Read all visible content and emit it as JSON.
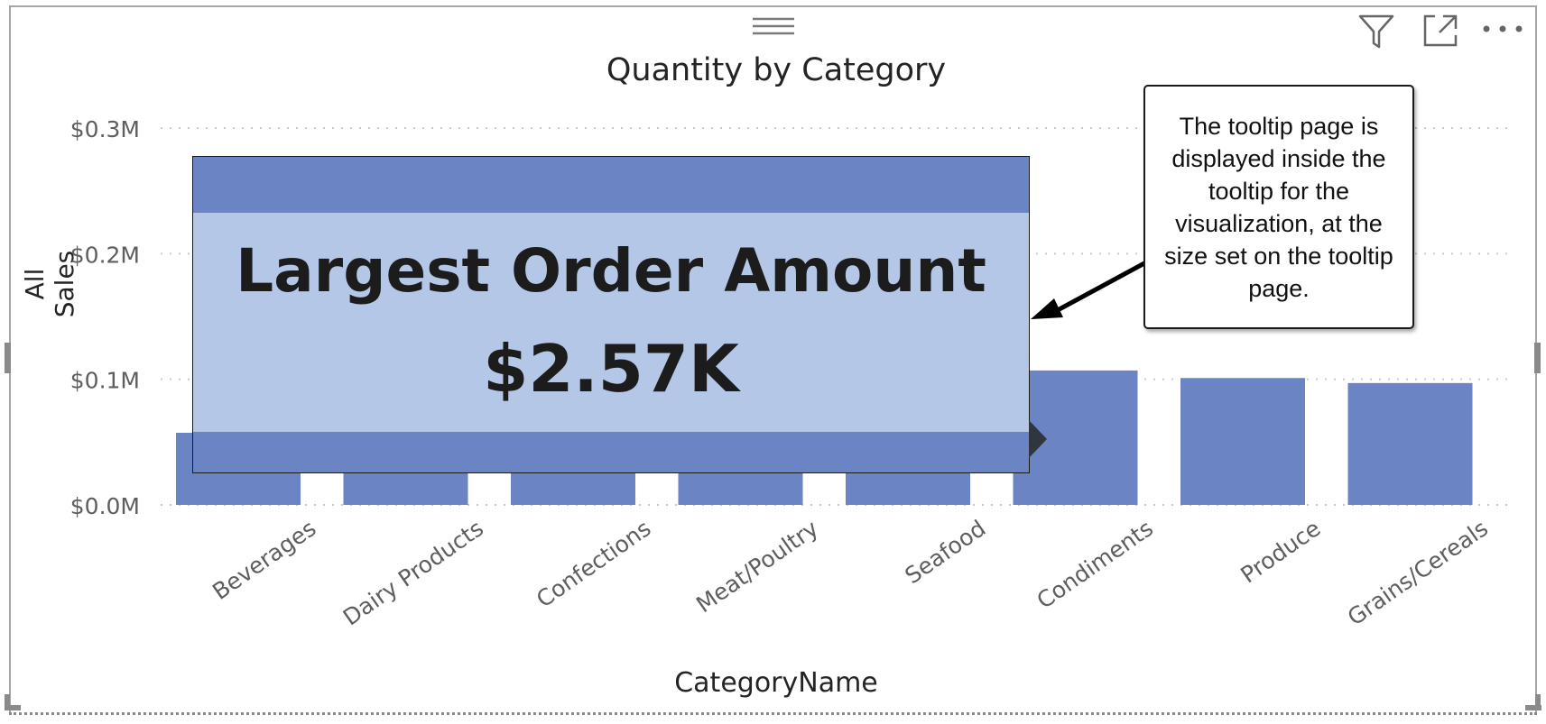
{
  "visual": {
    "title": "Quantity by Category",
    "header_icons": [
      "drag-handle-icon",
      "filter-icon",
      "focus-mode-icon",
      "more-options-icon"
    ]
  },
  "chart_data": {
    "type": "bar",
    "title": "Quantity by Category",
    "xlabel": "CategoryName",
    "ylabel": "All Sales",
    "categories": [
      "Beverages",
      "Dairy Products",
      "Confections",
      "Meat/Poultry",
      "Seafood",
      "Condiments",
      "Produce",
      "Grains/Cereals"
    ],
    "values": [
      null,
      null,
      null,
      null,
      null,
      0.107,
      0.101,
      0.097
    ],
    "ylim": [
      0,
      0.3
    ],
    "yticks": [
      0,
      0.1,
      0.2,
      0.3
    ],
    "ytick_labels": [
      "$0.0M",
      "$0.1M",
      "$0.2M",
      "$0.3M"
    ],
    "grid": true,
    "bar_color": "#6a84c4",
    "note": ""
  },
  "tooltip": {
    "heading": "Largest Order Amount",
    "value": "$2.57K",
    "band_color": "#6a84c4",
    "fill_color": "#b4c7e7"
  },
  "callout": {
    "text": "The tooltip page is displayed inside the tooltip for the visualization, at the size set on the tooltip page."
  }
}
